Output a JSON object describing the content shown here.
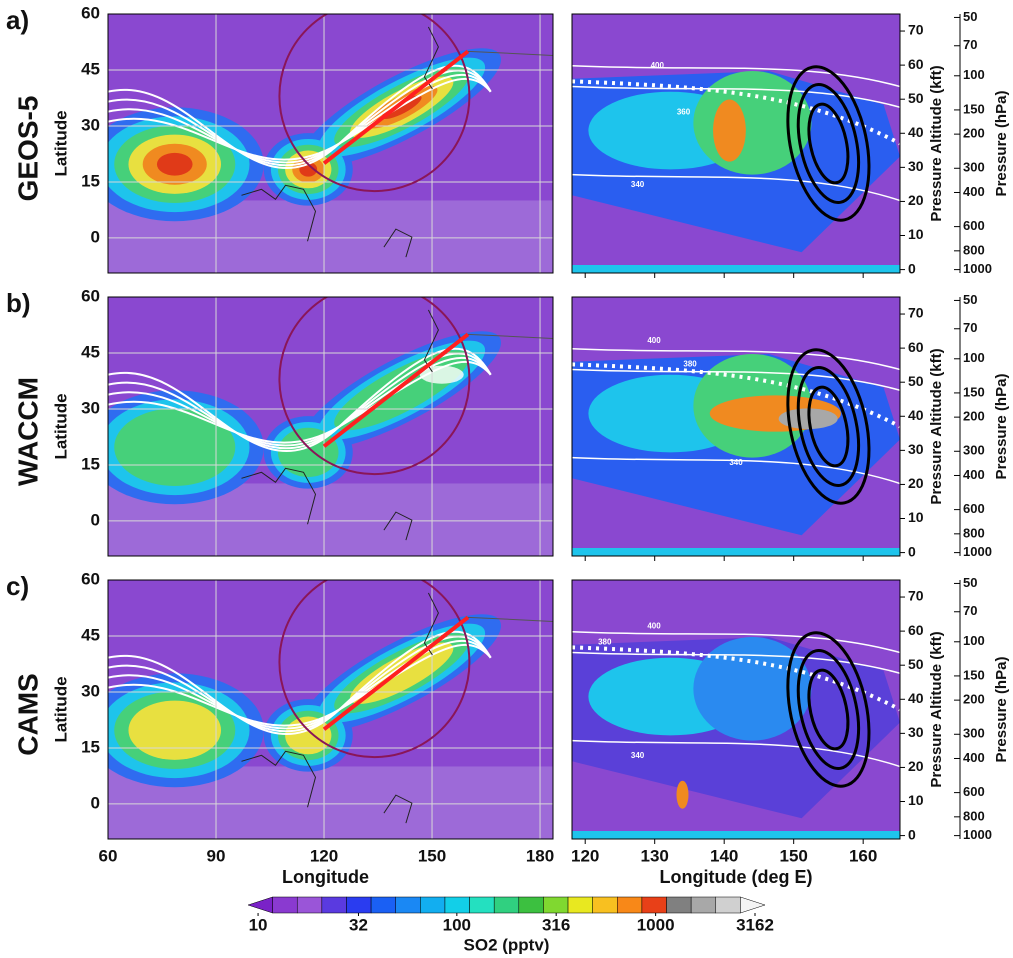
{
  "chart_data": [
    {
      "type": "map",
      "panel_label": "a)",
      "title": "GEOS-5",
      "ylabel": "Latitude",
      "xlim": [
        60,
        183.6
      ],
      "ylim": [
        -9.4,
        60
      ],
      "xticks": [
        60,
        90,
        120,
        150,
        180
      ],
      "yticks": [
        60,
        45,
        30,
        15,
        0
      ],
      "grid": true,
      "show_xticklabels": false
    },
    {
      "type": "map",
      "panel_label": "b)",
      "title": "WACCM",
      "ylabel": "Latitude",
      "xlim": [
        60,
        183.6
      ],
      "ylim": [
        -9.4,
        60
      ],
      "xticks": [
        60,
        90,
        120,
        150,
        180
      ],
      "yticks": [
        60,
        45,
        30,
        15,
        0
      ],
      "grid": true,
      "show_xticklabels": false
    },
    {
      "type": "map",
      "panel_label": "c)",
      "title": "CAMS",
      "ylabel": "Latitude",
      "xlabel": "Longitude",
      "xlim": [
        60,
        183.6
      ],
      "ylim": [
        -9.4,
        60
      ],
      "xticks": [
        60,
        90,
        120,
        150,
        180
      ],
      "yticks": [
        60,
        45,
        30,
        15,
        0
      ],
      "grid": true,
      "show_xticklabels": true
    },
    {
      "type": "curtain",
      "ylabel": "Pressure Altitude (kft)",
      "y2label": "Pressure (hPa)",
      "xlim": [
        118.1,
        165.3
      ],
      "ylim": [
        -1,
        75
      ],
      "xticks": [
        120,
        130,
        140,
        150,
        160
      ],
      "yticks": [
        70,
        60,
        50,
        40,
        30,
        20,
        10,
        0
      ],
      "y2lim": [
        1041,
        48
      ],
      "y2_log": true,
      "y2ticks": [
        50,
        70,
        100,
        150,
        200,
        300,
        400,
        600,
        800,
        1000
      ],
      "contour_labels": [
        "400",
        "360",
        "340"
      ],
      "show_xticklabels": false
    },
    {
      "type": "curtain",
      "ylabel": "Pressure Altitude (kft)",
      "y2label": "Pressure (hPa)",
      "xlim": [
        118.1,
        165.3
      ],
      "ylim": [
        -1,
        75
      ],
      "xticks": [
        120,
        130,
        140,
        150,
        160
      ],
      "yticks": [
        70,
        60,
        50,
        40,
        30,
        20,
        10,
        0
      ],
      "y2lim": [
        1041,
        48
      ],
      "y2_log": true,
      "y2ticks": [
        50,
        70,
        100,
        150,
        200,
        300,
        400,
        600,
        800,
        1000
      ],
      "contour_labels": [
        "400",
        "380",
        "340"
      ],
      "show_xticklabels": false
    },
    {
      "type": "curtain",
      "ylabel": "Pressure Altitude (kft)",
      "y2label": "Pressure (hPa)",
      "xlabel": "Longitude (deg E)",
      "xlim": [
        118.1,
        165.3
      ],
      "ylim": [
        -1,
        75
      ],
      "xticks": [
        120,
        130,
        140,
        150,
        160
      ],
      "yticks": [
        70,
        60,
        50,
        40,
        30,
        20,
        10,
        0
      ],
      "y2lim": [
        1041,
        48
      ],
      "y2_log": true,
      "y2ticks": [
        50,
        70,
        100,
        150,
        200,
        300,
        400,
        600,
        800,
        1000
      ],
      "contour_labels": [
        "400",
        "380",
        "340"
      ],
      "show_xticklabels": true
    },
    {
      "type": "colorbar",
      "label": "SO2 (pptv)",
      "log": true,
      "xlim": [
        8.9,
        3550
      ],
      "xticks": [
        10,
        32,
        100,
        316,
        1000,
        3162
      ],
      "colors": [
        "#7a22c8",
        "#8a3ad0",
        "#9a55d8",
        "#5a3ae0",
        "#2a3cf0",
        "#1a60f4",
        "#1a88f4",
        "#12aef0",
        "#12cfe8",
        "#24e0c0",
        "#30d080",
        "#3cc040",
        "#80d830",
        "#e8e820",
        "#f8c020",
        "#f88818",
        "#e84018",
        "#808080",
        "#a8a8a8",
        "#d0d0d0",
        "#f4f4f4"
      ]
    }
  ]
}
